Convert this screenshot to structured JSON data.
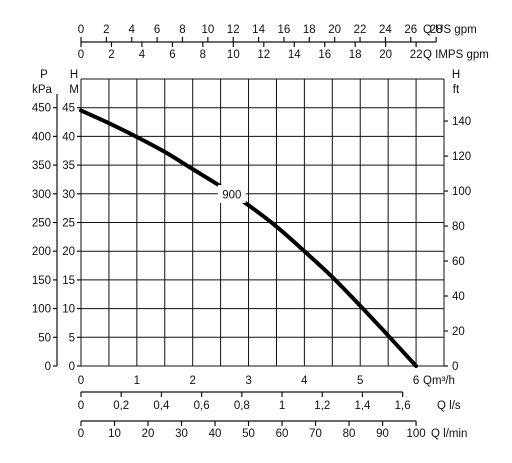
{
  "chart_data": {
    "type": "line",
    "title": "",
    "grid": true,
    "x": [
      0,
      0.5,
      1,
      1.5,
      2,
      2.5,
      3,
      3.5,
      4,
      4.5,
      5,
      5.5,
      6
    ],
    "series": [
      {
        "name": "900",
        "values": [
          44.5,
          42.3,
          39.9,
          37.3,
          34.3,
          31.3,
          28,
          24.3,
          20,
          15.5,
          10.5,
          5.3,
          0
        ]
      }
    ],
    "curve_label": "900",
    "curve_label_x": 2.7,
    "xlim": [
      0,
      6.5
    ],
    "ylim": [
      0,
      50
    ],
    "axes": {
      "top_us": {
        "unit": "Q US gpm",
        "ticks": [
          "0",
          "2",
          "4",
          "6",
          "8",
          "10",
          "12",
          "14",
          "16",
          "18",
          "20",
          "22",
          "24",
          "26",
          "28"
        ],
        "values": [
          0,
          2,
          4,
          6,
          8,
          10,
          12,
          14,
          16,
          18,
          20,
          22,
          24,
          26,
          28
        ],
        "per_m3h": 4.4029
      },
      "top_imps": {
        "unit": "Q IMPS gpm",
        "ticks": [
          "0",
          "2",
          "4",
          "6",
          "8",
          "10",
          "12",
          "14",
          "16",
          "18",
          "20",
          "22"
        ],
        "values": [
          0,
          2,
          4,
          6,
          8,
          10,
          12,
          14,
          16,
          18,
          20,
          22
        ],
        "per_m3h": 3.6662
      },
      "bottom_m3h": {
        "unit": "Qm³/h",
        "ticks": [
          "0",
          "1",
          "2",
          "3",
          "4",
          "5",
          "6"
        ],
        "values": [
          0,
          1,
          2,
          3,
          4,
          5,
          6
        ],
        "per_m3h": 1
      },
      "bottom_ls": {
        "unit": "Q l/s",
        "ticks": [
          "0",
          "0,2",
          "0,4",
          "0,6",
          "0,8",
          "1",
          "1,2",
          "1,4",
          "1,6"
        ],
        "values": [
          0,
          0.2,
          0.4,
          0.6,
          0.8,
          1,
          1.2,
          1.4,
          1.6
        ],
        "per_m3h": 0.27778
      },
      "bottom_lmin": {
        "unit": "Q l/min",
        "ticks": [
          "0",
          "10",
          "20",
          "30",
          "40",
          "50",
          "60",
          "70",
          "80",
          "90",
          "100"
        ],
        "values": [
          0,
          10,
          20,
          30,
          40,
          50,
          60,
          70,
          80,
          90,
          100
        ],
        "per_m3h": 16.6667
      },
      "left_kpa": {
        "label_top": "P",
        "label_unit": "kPa",
        "ticks": [
          "0",
          "50",
          "100",
          "150",
          "200",
          "250",
          "300",
          "350",
          "400",
          "450"
        ],
        "values": [
          0,
          50,
          100,
          150,
          200,
          250,
          300,
          350,
          400,
          450
        ],
        "per_m": 10
      },
      "left_m": {
        "label_top": "H",
        "label_unit": "M",
        "ticks": [
          "0",
          "5",
          "10",
          "15",
          "20",
          "25",
          "30",
          "35",
          "40",
          "45"
        ],
        "values": [
          0,
          5,
          10,
          15,
          20,
          25,
          30,
          35,
          40,
          45
        ],
        "per_m": 1
      },
      "right_ft": {
        "label_top": "H",
        "label_unit": "ft",
        "ticks": [
          "0",
          "20",
          "40",
          "60",
          "80",
          "100",
          "120",
          "140"
        ],
        "values": [
          0,
          20,
          40,
          60,
          80,
          100,
          120,
          140
        ],
        "per_m": 3.2808
      }
    }
  }
}
